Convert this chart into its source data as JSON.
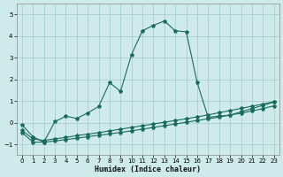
{
  "xlabel": "Humidex (Indice chaleur)",
  "background_color": "#ceeaea",
  "grid_color": "#aacece",
  "line_color": "#1a6b5a",
  "xlim": [
    -0.5,
    23.5
  ],
  "ylim": [
    -1.5,
    5.5
  ],
  "xticks": [
    0,
    1,
    2,
    3,
    4,
    5,
    6,
    7,
    8,
    9,
    10,
    11,
    12,
    13,
    14,
    15,
    16,
    17,
    18,
    19,
    20,
    21,
    22,
    23
  ],
  "yticks": [
    -1,
    0,
    1,
    2,
    3,
    4,
    5
  ],
  "series1_x": [
    0,
    1,
    2,
    3,
    4,
    5,
    6,
    7,
    8,
    9,
    10,
    11,
    12,
    13,
    14,
    15,
    16,
    17,
    18,
    19,
    20,
    21,
    22,
    23
  ],
  "series1_y": [
    -0.1,
    -0.65,
    -0.9,
    0.05,
    0.3,
    0.2,
    0.45,
    0.75,
    1.85,
    1.45,
    3.15,
    4.25,
    4.5,
    4.7,
    4.25,
    4.2,
    1.85,
    0.25,
    0.3,
    0.35,
    0.5,
    0.65,
    0.8,
    0.95
  ],
  "series2_x": [
    0,
    1,
    2,
    3,
    4,
    5,
    6,
    7,
    8,
    9,
    10,
    11,
    12,
    13,
    14,
    15,
    16,
    17,
    18,
    19,
    20,
    21,
    22,
    23
  ],
  "series2_y": [
    -0.45,
    -0.9,
    -0.9,
    -0.85,
    -0.78,
    -0.72,
    -0.65,
    -0.58,
    -0.52,
    -0.45,
    -0.38,
    -0.3,
    -0.22,
    -0.14,
    -0.06,
    0.02,
    0.1,
    0.18,
    0.26,
    0.35,
    0.44,
    0.54,
    0.65,
    0.78
  ],
  "series3_x": [
    0,
    1,
    2,
    3,
    4,
    5,
    6,
    7,
    8,
    9,
    10,
    11,
    12,
    13,
    14,
    15,
    16,
    17,
    18,
    19,
    20,
    21,
    22,
    23
  ],
  "series3_y": [
    -0.35,
    -0.75,
    -0.82,
    -0.75,
    -0.68,
    -0.6,
    -0.53,
    -0.46,
    -0.38,
    -0.3,
    -0.22,
    -0.14,
    -0.06,
    0.02,
    0.1,
    0.18,
    0.27,
    0.36,
    0.46,
    0.56,
    0.66,
    0.76,
    0.86,
    0.97
  ]
}
